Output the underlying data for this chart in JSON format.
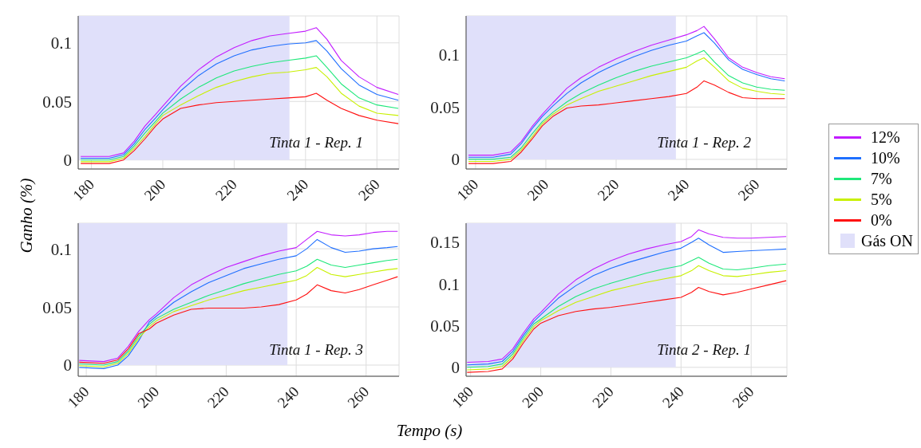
{
  "chart_data": [
    {
      "type": "line",
      "ylabel": "Ganho (%)",
      "annotations": [
        "Tinta 1 - Rep. 1"
      ],
      "xlim": [
        176.3,
        266.2
      ],
      "xticks": [
        180,
        200,
        220,
        240,
        260
      ],
      "ylim": [
        -0.0077,
        0.123
      ],
      "yticks": [
        0,
        0.05,
        0.1
      ],
      "grid": true,
      "legend": "right",
      "marker": "none",
      "line_style": "solid",
      "bands": [
        {
          "axis": "x",
          "from": 176.3,
          "to": 235.5,
          "label": "Gás ON",
          "color": "#e0e0fa"
        }
      ],
      "x": [
        177,
        185,
        189,
        192,
        195,
        198,
        200,
        205,
        210,
        215,
        220,
        225,
        230,
        235,
        240,
        243,
        246,
        250,
        255,
        260,
        266
      ],
      "series": [
        {
          "name": "12%",
          "color": "#c21cff",
          "values": [
            0.003,
            0.003,
            0.006,
            0.016,
            0.029,
            0.039,
            0.046,
            0.063,
            0.077,
            0.088,
            0.096,
            0.102,
            0.106,
            0.108,
            0.11,
            0.113,
            0.103,
            0.085,
            0.071,
            0.062,
            0.056
          ]
        },
        {
          "name": "10%",
          "color": "#1f6fff",
          "values": [
            0.0015,
            0.0015,
            0.0045,
            0.014,
            0.026,
            0.036,
            0.043,
            0.059,
            0.072,
            0.082,
            0.089,
            0.094,
            0.097,
            0.099,
            0.1,
            0.102,
            0.093,
            0.078,
            0.064,
            0.056,
            0.051
          ]
        },
        {
          "name": "7%",
          "color": "#1ee87a",
          "values": [
            0,
            0,
            0.003,
            0.012,
            0.023,
            0.033,
            0.04,
            0.052,
            0.062,
            0.07,
            0.076,
            0.08,
            0.083,
            0.085,
            0.087,
            0.089,
            0.079,
            0.065,
            0.053,
            0.047,
            0.044
          ]
        },
        {
          "name": "5%",
          "color": "#c8f000",
          "values": [
            -0.0015,
            -0.0015,
            0.0015,
            0.01,
            0.02,
            0.031,
            0.038,
            0.047,
            0.055,
            0.062,
            0.067,
            0.071,
            0.074,
            0.075,
            0.077,
            0.079,
            0.071,
            0.057,
            0.046,
            0.04,
            0.038
          ]
        },
        {
          "name": "0%",
          "color": "#ff1010",
          "values": [
            -0.003,
            -0.003,
            0,
            0.008,
            0.018,
            0.029,
            0.035,
            0.044,
            0.047,
            0.049,
            0.05,
            0.051,
            0.052,
            0.053,
            0.054,
            0.057,
            0.051,
            0.044,
            0.038,
            0.034,
            0.031
          ]
        }
      ]
    },
    {
      "type": "line",
      "annotations": [
        "Tinta 1 - Rep. 2"
      ],
      "xlim": [
        177.3,
        268.6
      ],
      "xticks": [
        180,
        200,
        220,
        240,
        260
      ],
      "ylim": [
        -0.0092,
        0.137
      ],
      "yticks": [
        0,
        0.05,
        0.1
      ],
      "grid": true,
      "legend": false,
      "marker": "none",
      "line_style": "solid",
      "bands": [
        {
          "axis": "x",
          "from": 177.3,
          "to": 237,
          "color": "#e0e0fa"
        }
      ],
      "x": [
        178,
        185,
        190,
        193,
        196,
        199,
        202,
        206,
        210,
        215,
        220,
        225,
        230,
        235,
        240,
        243,
        245,
        248,
        252,
        256,
        260,
        264,
        268
      ],
      "series": [
        {
          "color": "#c21cff",
          "values": [
            0.004,
            0.004,
            0.007,
            0.017,
            0.031,
            0.043,
            0.054,
            0.068,
            0.078,
            0.088,
            0.096,
            0.103,
            0.109,
            0.114,
            0.119,
            0.123,
            0.127,
            0.115,
            0.097,
            0.088,
            0.083,
            0.079,
            0.077
          ]
        },
        {
          "color": "#1f6fff",
          "values": [
            0.002,
            0.002,
            0.005,
            0.015,
            0.029,
            0.041,
            0.051,
            0.063,
            0.073,
            0.083,
            0.091,
            0.098,
            0.104,
            0.109,
            0.113,
            0.118,
            0.121,
            0.111,
            0.095,
            0.086,
            0.081,
            0.077,
            0.075
          ]
        },
        {
          "color": "#1ee87a",
          "values": [
            0,
            0,
            0.002,
            0.011,
            0.024,
            0.036,
            0.045,
            0.055,
            0.063,
            0.071,
            0.078,
            0.084,
            0.089,
            0.093,
            0.097,
            0.101,
            0.104,
            0.093,
            0.08,
            0.073,
            0.069,
            0.067,
            0.066
          ]
        },
        {
          "color": "#c8f000",
          "values": [
            -0.002,
            -0.002,
            0,
            0.009,
            0.021,
            0.034,
            0.043,
            0.052,
            0.058,
            0.065,
            0.07,
            0.075,
            0.08,
            0.084,
            0.088,
            0.094,
            0.097,
            0.088,
            0.075,
            0.068,
            0.065,
            0.063,
            0.062
          ]
        },
        {
          "color": "#ff1010",
          "values": [
            -0.004,
            -0.004,
            -0.002,
            0.007,
            0.019,
            0.032,
            0.041,
            0.049,
            0.051,
            0.052,
            0.054,
            0.056,
            0.058,
            0.06,
            0.063,
            0.069,
            0.075,
            0.071,
            0.064,
            0.059,
            0.058,
            0.058,
            0.058
          ]
        }
      ]
    },
    {
      "type": "line",
      "xlabel": "Tempo (s)",
      "annotations": [
        "Tinta 1 - Rep. 3"
      ],
      "xlim": [
        177.7,
        269.4
      ],
      "xticks": [
        180,
        200,
        220,
        240,
        260
      ],
      "ylim": [
        -0.0096,
        0.122
      ],
      "yticks": [
        0,
        0.05,
        0.1
      ],
      "grid": true,
      "legend": false,
      "marker": "none",
      "line_style": "solid",
      "bands": [
        {
          "axis": "x",
          "from": 177.7,
          "to": 237.5,
          "color": "#e0e0fa"
        }
      ],
      "x": [
        178,
        185,
        189,
        192,
        195,
        198,
        200,
        205,
        210,
        215,
        220,
        225,
        230,
        235,
        240,
        243,
        246,
        250,
        254,
        258,
        262,
        266,
        269
      ],
      "series": [
        {
          "color": "#c21cff",
          "values": [
            0.004,
            0.003,
            0.006,
            0.016,
            0.029,
            0.039,
            0.044,
            0.058,
            0.069,
            0.077,
            0.084,
            0.089,
            0.094,
            0.098,
            0.101,
            0.108,
            0.115,
            0.112,
            0.111,
            0.112,
            0.114,
            0.115,
            0.115
          ]
        },
        {
          "color": "#1f6fff",
          "values": [
            -0.002,
            -0.003,
            0,
            0.008,
            0.021,
            0.037,
            0.042,
            0.054,
            0.063,
            0.071,
            0.077,
            0.083,
            0.087,
            0.091,
            0.094,
            0.1,
            0.108,
            0.101,
            0.097,
            0.098,
            0.1,
            0.101,
            0.102
          ]
        },
        {
          "color": "#1ee87a",
          "values": [
            0.001,
            0,
            0.003,
            0.012,
            0.025,
            0.035,
            0.04,
            0.048,
            0.054,
            0.06,
            0.065,
            0.07,
            0.074,
            0.078,
            0.081,
            0.085,
            0.091,
            0.086,
            0.084,
            0.086,
            0.088,
            0.09,
            0.091
          ]
        },
        {
          "color": "#c8f000",
          "values": [
            -0.0005,
            -0.0015,
            0.0015,
            0.01,
            0.023,
            0.033,
            0.038,
            0.046,
            0.051,
            0.056,
            0.06,
            0.064,
            0.067,
            0.07,
            0.073,
            0.077,
            0.084,
            0.078,
            0.076,
            0.078,
            0.08,
            0.082,
            0.083
          ]
        },
        {
          "color": "#ff1010",
          "values": [
            0.0025,
            0.0015,
            0.0045,
            0.014,
            0.027,
            0.031,
            0.036,
            0.043,
            0.048,
            0.049,
            0.049,
            0.049,
            0.05,
            0.052,
            0.056,
            0.061,
            0.069,
            0.064,
            0.062,
            0.065,
            0.069,
            0.073,
            0.076
          ]
        }
      ]
    },
    {
      "type": "line",
      "annotations": [
        "Tinta 2 - Rep. 1"
      ],
      "xlim": [
        178.7,
        270.2
      ],
      "xticks": [
        180,
        200,
        220,
        240,
        260
      ],
      "ylim": [
        -0.0107,
        0.173
      ],
      "yticks": [
        0,
        0.05,
        0.1,
        0.15
      ],
      "grid": true,
      "legend": false,
      "marker": "none",
      "line_style": "solid",
      "bands": [
        {
          "axis": "x",
          "from": 178.7,
          "to": 238.5,
          "color": "#e0e0fa"
        }
      ],
      "x": [
        179,
        185,
        189,
        192,
        195,
        198,
        200,
        205,
        210,
        215,
        220,
        225,
        230,
        235,
        240,
        243,
        245,
        248,
        252,
        256,
        260,
        265,
        270
      ],
      "series": [
        {
          "color": "#c21cff",
          "values": [
            0.006,
            0.007,
            0.01,
            0.022,
            0.041,
            0.058,
            0.066,
            0.088,
            0.105,
            0.118,
            0.128,
            0.136,
            0.142,
            0.147,
            0.151,
            0.157,
            0.165,
            0.16,
            0.156,
            0.155,
            0.155,
            0.156,
            0.157
          ]
        },
        {
          "color": "#1f6fff",
          "values": [
            0.003,
            0.004,
            0.007,
            0.019,
            0.038,
            0.055,
            0.063,
            0.083,
            0.098,
            0.11,
            0.119,
            0.126,
            0.132,
            0.138,
            0.143,
            0.15,
            0.155,
            0.147,
            0.138,
            0.139,
            0.14,
            0.141,
            0.142
          ]
        },
        {
          "color": "#1ee87a",
          "values": [
            0,
            0.001,
            0.004,
            0.016,
            0.035,
            0.052,
            0.058,
            0.073,
            0.085,
            0.094,
            0.101,
            0.107,
            0.113,
            0.118,
            0.122,
            0.128,
            0.132,
            0.125,
            0.118,
            0.117,
            0.119,
            0.122,
            0.124
          ]
        },
        {
          "color": "#c8f000",
          "values": [
            -0.003,
            -0.002,
            0.001,
            0.013,
            0.032,
            0.049,
            0.056,
            0.068,
            0.078,
            0.085,
            0.092,
            0.097,
            0.102,
            0.106,
            0.11,
            0.116,
            0.122,
            0.116,
            0.11,
            0.109,
            0.111,
            0.114,
            0.116
          ]
        },
        {
          "color": "#ff1010",
          "values": [
            -0.006,
            -0.005,
            -0.002,
            0.01,
            0.029,
            0.046,
            0.053,
            0.062,
            0.067,
            0.07,
            0.072,
            0.075,
            0.078,
            0.081,
            0.084,
            0.09,
            0.096,
            0.091,
            0.087,
            0.09,
            0.094,
            0.099,
            0.104
          ]
        }
      ]
    }
  ]
}
